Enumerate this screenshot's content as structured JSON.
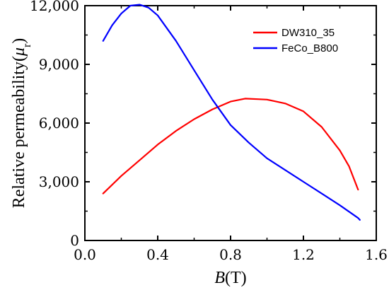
{
  "chart_data": {
    "type": "line",
    "title": "",
    "xlabel": {
      "main": "B",
      "unit": "(T)"
    },
    "ylabel": {
      "main": "Relative permeability(",
      "symbol": "μ",
      "subscript": "r",
      "close": ")"
    },
    "xlim": [
      0.0,
      1.6
    ],
    "ylim": [
      0,
      12000
    ],
    "x_ticks": [
      0.0,
      0.4,
      0.8,
      1.2,
      1.6
    ],
    "x_tick_labels": [
      "0.0",
      "0.4",
      "0.8",
      "1.2",
      "1.6"
    ],
    "y_ticks": [
      0,
      3000,
      6000,
      9000,
      12000
    ],
    "y_tick_labels": [
      "0",
      "3,000",
      "6,000",
      "9,000",
      "12,000"
    ],
    "grid": false,
    "legend_position": "top-right",
    "series": [
      {
        "name": "DW310_35",
        "color": "#ff0000",
        "points": [
          [
            0.1,
            2400
          ],
          [
            0.2,
            3300
          ],
          [
            0.3,
            4100
          ],
          [
            0.4,
            4900
          ],
          [
            0.5,
            5600
          ],
          [
            0.6,
            6200
          ],
          [
            0.7,
            6700
          ],
          [
            0.8,
            7100
          ],
          [
            0.88,
            7250
          ],
          [
            0.95,
            7220
          ],
          [
            1.0,
            7200
          ],
          [
            1.1,
            7000
          ],
          [
            1.2,
            6600
          ],
          [
            1.3,
            5800
          ],
          [
            1.4,
            4600
          ],
          [
            1.45,
            3800
          ],
          [
            1.5,
            2600
          ]
        ]
      },
      {
        "name": "FeCo_B800",
        "color": "#0000ff",
        "points": [
          [
            0.1,
            10200
          ],
          [
            0.15,
            11000
          ],
          [
            0.2,
            11600
          ],
          [
            0.25,
            12000
          ],
          [
            0.3,
            12050
          ],
          [
            0.35,
            11900
          ],
          [
            0.4,
            11500
          ],
          [
            0.5,
            10200
          ],
          [
            0.6,
            8700
          ],
          [
            0.7,
            7200
          ],
          [
            0.8,
            5900
          ],
          [
            0.9,
            5000
          ],
          [
            1.0,
            4200
          ],
          [
            1.1,
            3600
          ],
          [
            1.2,
            3000
          ],
          [
            1.3,
            2400
          ],
          [
            1.4,
            1800
          ],
          [
            1.5,
            1150
          ],
          [
            1.51,
            1050
          ]
        ]
      }
    ]
  }
}
